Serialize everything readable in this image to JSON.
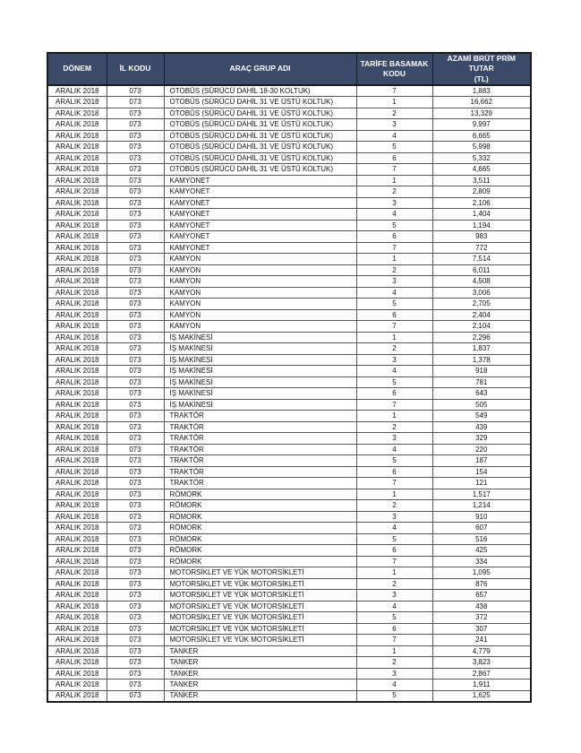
{
  "page": {
    "background": "#ffffff"
  },
  "table": {
    "header_bg": "#3a4a68",
    "header_text_color": "#ffffff",
    "border_color": "#1c1c1c",
    "columns": [
      {
        "line1": "DÖNEM",
        "line2": ""
      },
      {
        "line1": "İL KODU",
        "line2": ""
      },
      {
        "line1": "ARAÇ GRUP ADI",
        "line2": ""
      },
      {
        "line1": "TARİFE BASAMAK",
        "line2": "KODU"
      },
      {
        "line1": "AZAMİ BRÜT PRİM TUTAR",
        "line2": "(TL)"
      }
    ],
    "rows": [
      [
        "ARALIK 2018",
        "073",
        "OTOBÜS (SÜRÜCÜ DAHİL 18-30 KOLTUK)",
        "7",
        "1,883"
      ],
      [
        "ARALIK 2018",
        "073",
        "OTOBÜS (SÜRÜCÜ DAHİL 31 VE ÜSTÜ KOLTUK)",
        "1",
        "16,662"
      ],
      [
        "ARALIK 2018",
        "073",
        "OTOBÜS (SÜRÜCÜ DAHİL 31 VE ÜSTÜ KOLTUK)",
        "2",
        "13,329"
      ],
      [
        "ARALIK 2018",
        "073",
        "OTOBÜS (SÜRÜCÜ DAHİL 31 VE ÜSTÜ KOLTUK)",
        "3",
        "9,997"
      ],
      [
        "ARALIK 2018",
        "073",
        "OTOBÜS (SÜRÜCÜ DAHİL 31 VE ÜSTÜ KOLTUK)",
        "4",
        "6,665"
      ],
      [
        "ARALIK 2018",
        "073",
        "OTOBÜS (SÜRÜCÜ DAHİL 31 VE ÜSTÜ KOLTUK)",
        "5",
        "5,998"
      ],
      [
        "ARALIK 2018",
        "073",
        "OTOBÜS (SÜRÜCÜ DAHİL 31 VE ÜSTÜ KOLTUK)",
        "6",
        "5,332"
      ],
      [
        "ARALIK 2018",
        "073",
        "OTOBÜS (SÜRÜCÜ DAHİL 31 VE ÜSTÜ KOLTUK)",
        "7",
        "4,665"
      ],
      [
        "ARALIK 2018",
        "073",
        "KAMYONET",
        "1",
        "3,511"
      ],
      [
        "ARALIK 2018",
        "073",
        "KAMYONET",
        "2",
        "2,809"
      ],
      [
        "ARALIK 2018",
        "073",
        "KAMYONET",
        "3",
        "2,106"
      ],
      [
        "ARALIK 2018",
        "073",
        "KAMYONET",
        "4",
        "1,404"
      ],
      [
        "ARALIK 2018",
        "073",
        "KAMYONET",
        "5",
        "1,194"
      ],
      [
        "ARALIK 2018",
        "073",
        "KAMYONET",
        "6",
        "983"
      ],
      [
        "ARALIK 2018",
        "073",
        "KAMYONET",
        "7",
        "772"
      ],
      [
        "ARALIK 2018",
        "073",
        "KAMYON",
        "1",
        "7,514"
      ],
      [
        "ARALIK 2018",
        "073",
        "KAMYON",
        "2",
        "6,011"
      ],
      [
        "ARALIK 2018",
        "073",
        "KAMYON",
        "3",
        "4,508"
      ],
      [
        "ARALIK 2018",
        "073",
        "KAMYON",
        "4",
        "3,006"
      ],
      [
        "ARALIK 2018",
        "073",
        "KAMYON",
        "5",
        "2,705"
      ],
      [
        "ARALIK 2018",
        "073",
        "KAMYON",
        "6",
        "2,404"
      ],
      [
        "ARALIK 2018",
        "073",
        "KAMYON",
        "7",
        "2,104"
      ],
      [
        "ARALIK 2018",
        "073",
        "İŞ MAKİNESİ",
        "1",
        "2,296"
      ],
      [
        "ARALIK 2018",
        "073",
        "İŞ MAKİNESİ",
        "2",
        "1,837"
      ],
      [
        "ARALIK 2018",
        "073",
        "İŞ MAKİNESİ",
        "3",
        "1,378"
      ],
      [
        "ARALIK 2018",
        "073",
        "İŞ MAKİNESİ",
        "4",
        "918"
      ],
      [
        "ARALIK 2018",
        "073",
        "İŞ MAKİNESİ",
        "5",
        "781"
      ],
      [
        "ARALIK 2018",
        "073",
        "İŞ MAKİNESİ",
        "6",
        "643"
      ],
      [
        "ARALIK 2018",
        "073",
        "İŞ MAKİNESİ",
        "7",
        "505"
      ],
      [
        "ARALIK 2018",
        "073",
        "TRAKTÖR",
        "1",
        "549"
      ],
      [
        "ARALIK 2018",
        "073",
        "TRAKTÖR",
        "2",
        "439"
      ],
      [
        "ARALIK 2018",
        "073",
        "TRAKTÖR",
        "3",
        "329"
      ],
      [
        "ARALIK 2018",
        "073",
        "TRAKTÖR",
        "4",
        "220"
      ],
      [
        "ARALIK 2018",
        "073",
        "TRAKTÖR",
        "5",
        "187"
      ],
      [
        "ARALIK 2018",
        "073",
        "TRAKTÖR",
        "6",
        "154"
      ],
      [
        "ARALIK 2018",
        "073",
        "TRAKTÖR",
        "7",
        "121"
      ],
      [
        "ARALIK 2018",
        "073",
        "RÖMORK",
        "1",
        "1,517"
      ],
      [
        "ARALIK 2018",
        "073",
        "RÖMORK",
        "2",
        "1,214"
      ],
      [
        "ARALIK 2018",
        "073",
        "RÖMORK",
        "3",
        "910"
      ],
      [
        "ARALIK 2018",
        "073",
        "RÖMORK",
        "4",
        "607"
      ],
      [
        "ARALIK 2018",
        "073",
        "RÖMORK",
        "5",
        "516"
      ],
      [
        "ARALIK 2018",
        "073",
        "RÖMORK",
        "6",
        "425"
      ],
      [
        "ARALIK 2018",
        "073",
        "RÖMORK",
        "7",
        "334"
      ],
      [
        "ARALIK 2018",
        "073",
        "MOTORSİKLET VE YÜK MOTORSİKLETİ",
        "1",
        "1,095"
      ],
      [
        "ARALIK 2018",
        "073",
        "MOTORSİKLET VE YÜK MOTORSİKLETİ",
        "2",
        "876"
      ],
      [
        "ARALIK 2018",
        "073",
        "MOTORSİKLET VE YÜK MOTORSİKLETİ",
        "3",
        "657"
      ],
      [
        "ARALIK 2018",
        "073",
        "MOTORSİKLET VE YÜK MOTORSİKLETİ",
        "4",
        "438"
      ],
      [
        "ARALIK 2018",
        "073",
        "MOTORSİKLET VE YÜK MOTORSİKLETİ",
        "5",
        "372"
      ],
      [
        "ARALIK 2018",
        "073",
        "MOTORSİKLET VE YÜK MOTORSİKLETİ",
        "6",
        "307"
      ],
      [
        "ARALIK 2018",
        "073",
        "MOTORSİKLET VE YÜK MOTORSİKLETİ",
        "7",
        "241"
      ],
      [
        "ARALIK 2018",
        "073",
        "TANKER",
        "1",
        "4,779"
      ],
      [
        "ARALIK 2018",
        "073",
        "TANKER",
        "2",
        "3,823"
      ],
      [
        "ARALIK 2018",
        "073",
        "TANKER",
        "3",
        "2,867"
      ],
      [
        "ARALIK 2018",
        "073",
        "TANKER",
        "4",
        "1,911"
      ],
      [
        "ARALIK 2018",
        "073",
        "TANKER",
        "5",
        "1,625"
      ]
    ]
  }
}
